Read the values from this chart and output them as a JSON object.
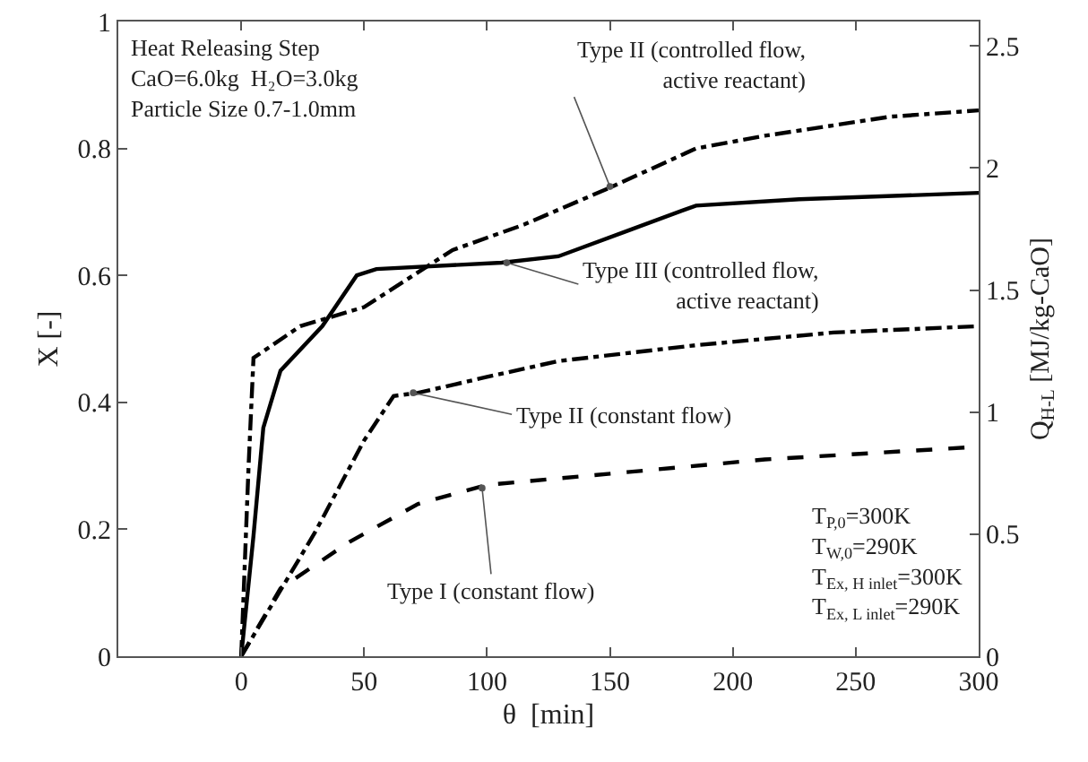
{
  "chart_data": {
    "type": "line",
    "xlabel": "θ  [min]",
    "ylabel": "X [-]",
    "y2label": "Q$_{H-L}$ [MJ/kg-CaO]",
    "xlim": [
      -50,
      300
    ],
    "xticks": [
      0,
      50,
      100,
      150,
      200,
      250,
      300
    ],
    "ylim": [
      0,
      1
    ],
    "yticks": [
      0,
      0.2,
      0.4,
      0.6,
      0.8,
      1
    ],
    "y2lim": [
      0,
      2.6
    ],
    "y2ticks": [
      0,
      0.5,
      1,
      1.5,
      2,
      2.5
    ],
    "marker": "none",
    "series": [
      {
        "color": "#000000",
        "line_style": "dashdot",
        "x": [
          0,
          3,
          5,
          24,
          50,
          86,
          115,
          151,
          185,
          213,
          264,
          300
        ],
        "values": [
          0,
          0.3,
          0.47,
          0.52,
          0.55,
          0.64,
          0.68,
          0.74,
          0.8,
          0.82,
          0.85,
          0.86
        ]
      },
      {
        "color": "#000000",
        "line_style": "solid",
        "x": [
          0,
          5,
          9,
          16,
          33,
          47,
          55,
          106,
          129,
          157,
          185,
          227,
          300
        ],
        "values": [
          0,
          0.19,
          0.36,
          0.45,
          0.52,
          0.6,
          0.61,
          0.62,
          0.63,
          0.67,
          0.71,
          0.72,
          0.73
        ]
      },
      {
        "color": "#000000",
        "line_style": "dashdot",
        "x": [
          0,
          30,
          50,
          62,
          72,
          100,
          129,
          185,
          241,
          300
        ],
        "values": [
          0,
          0.195,
          0.34,
          0.41,
          0.415,
          0.44,
          0.465,
          0.49,
          0.51,
          0.52
        ]
      },
      {
        "color": "#000000",
        "line_style": "dashed",
        "x": [
          0,
          16,
          44,
          72,
          100,
          157,
          213,
          300
        ],
        "values": [
          0,
          0.107,
          0.18,
          0.24,
          0.27,
          0.29,
          0.31,
          0.33
        ]
      }
    ],
    "annotations": [
      {
        "text": "Type II (controlled flow,\nactive reactant)",
        "x": 150,
        "y": 0.74
      },
      {
        "text": "Type III (controlled flow,\nactive reactant)",
        "x": 108,
        "y": 0.62
      },
      {
        "text": "Type II (constant flow)",
        "x": 70,
        "y": 0.415
      },
      {
        "text": "Type I (constant flow)",
        "x": 98,
        "y": 0.265
      },
      "Heat Releasing Step\nCaO=6.0kg  H₂O=3.0kg\nParticle Size 0.7-1.0mm",
      "T$_{P,0}$=300K\nT$_{W,0}$=290K\nT$_{Ex, H inlet}$=300K\nT$_{Ex, L inlet}$=290K"
    ]
  }
}
